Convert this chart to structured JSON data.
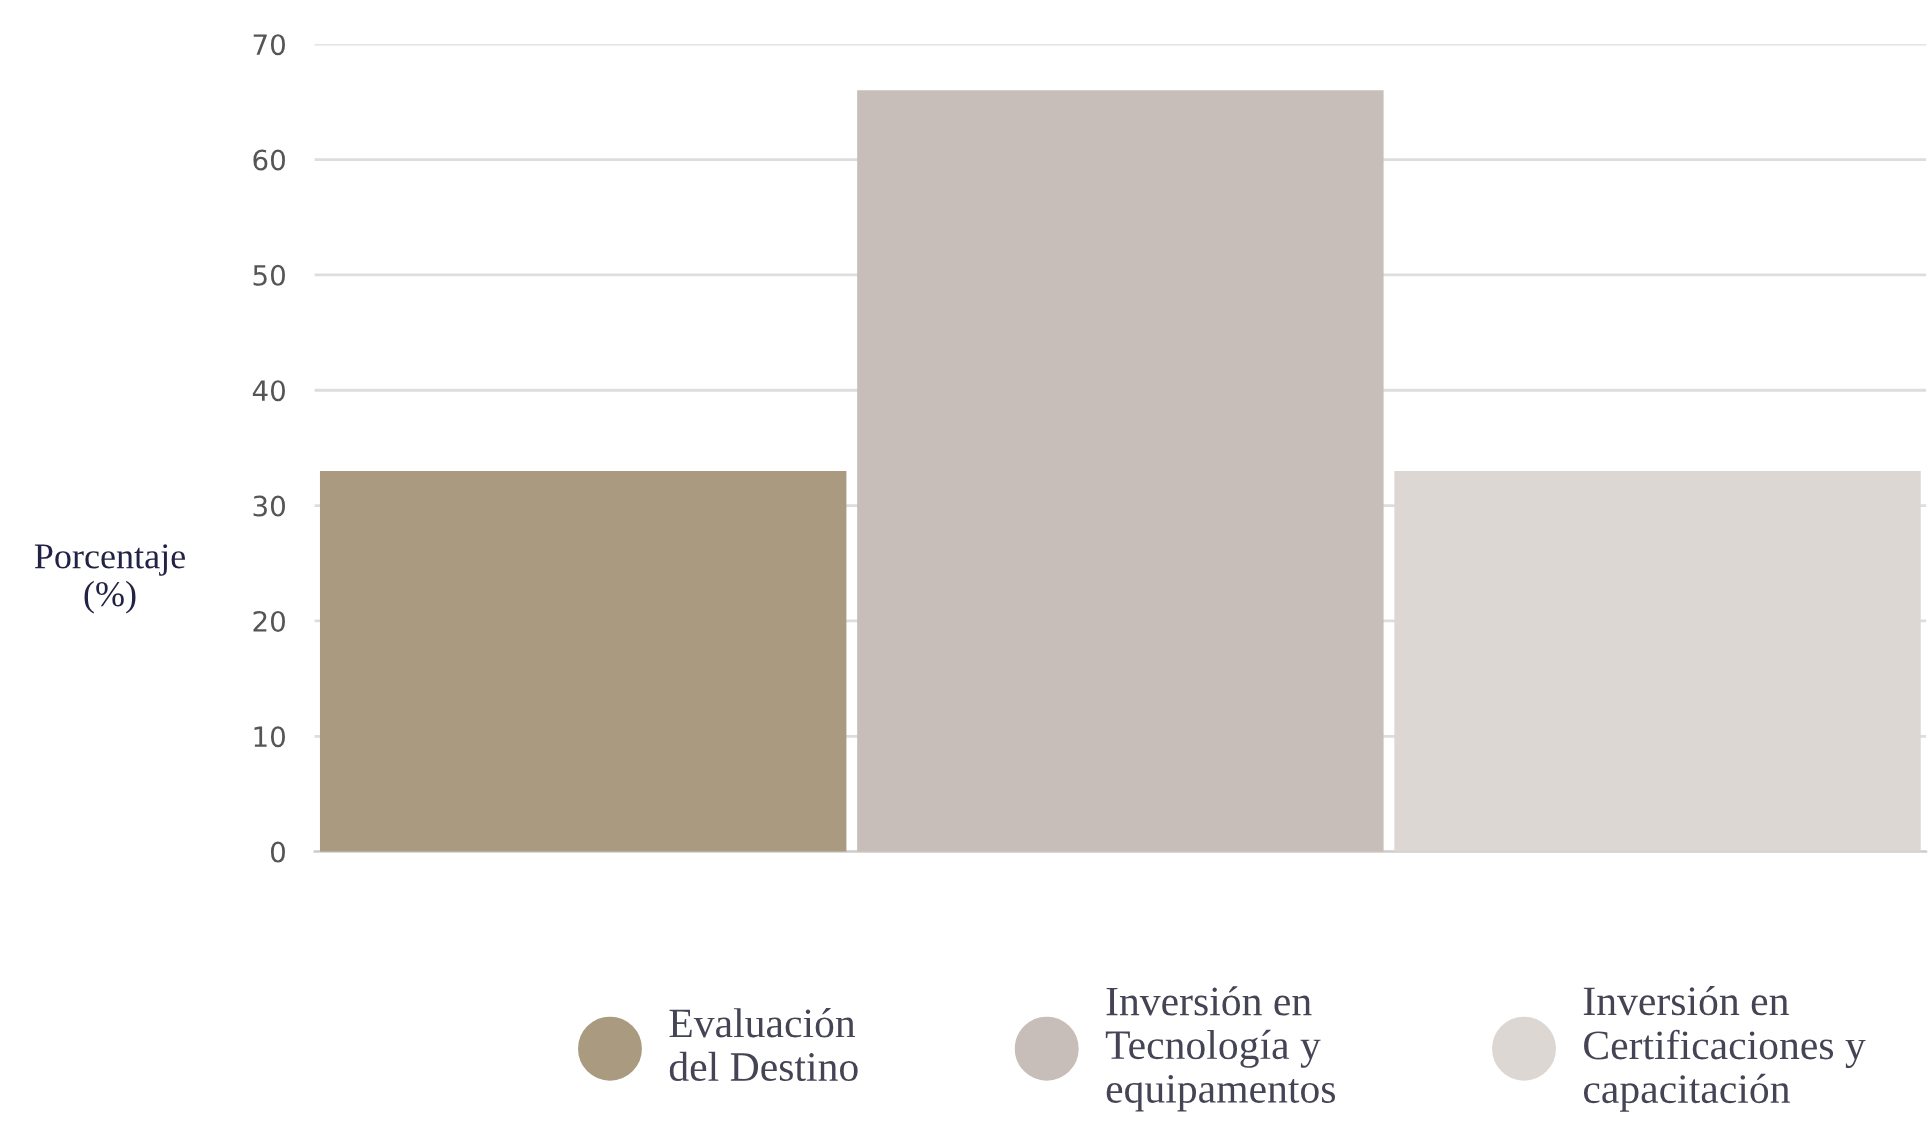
{
  "chart_data": {
    "type": "bar",
    "ylabel": "Porcentaje\n(%)",
    "categories": [
      null,
      null,
      null
    ],
    "series": [
      {
        "name": "Evaluación\ndel Destino",
        "color": "#a99a80",
        "values": [
          33,
          null,
          null
        ]
      },
      {
        "name": "Inversión en\nTecnología y\nequipamentos",
        "color": "#c7beb9",
        "values": [
          null,
          66,
          null
        ]
      },
      {
        "name": "Inversión en\nCertificaciones y\ncapacitación",
        "color": "#dcd7d3",
        "values": [
          null,
          null,
          33
        ]
      }
    ],
    "ylim": [
      0,
      70
    ],
    "yticks": [
      0,
      10,
      20,
      30,
      40,
      50,
      60,
      70
    ],
    "grid": "y",
    "legend": "bottom"
  }
}
